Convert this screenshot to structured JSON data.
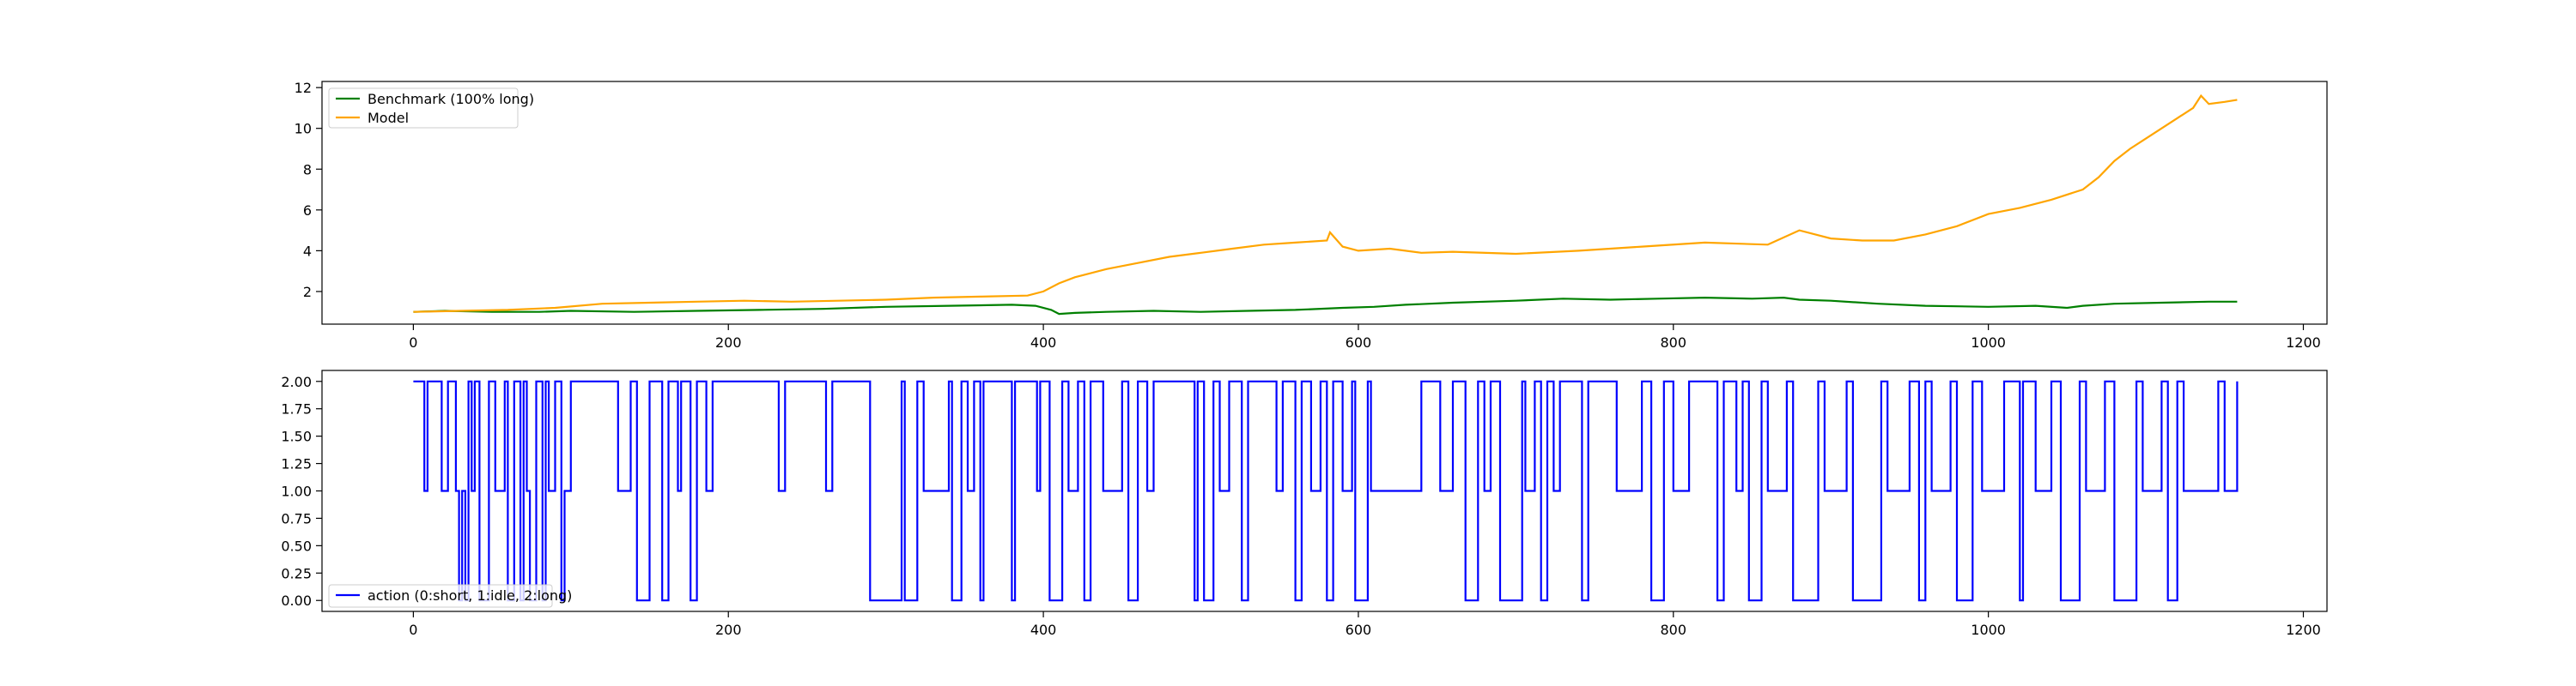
{
  "chart_data": [
    {
      "type": "line",
      "title": "",
      "xlabel": "",
      "ylabel": "",
      "xlim": [
        -58,
        1215
      ],
      "ylim": [
        0.4,
        12.3
      ],
      "x_ticks": [
        0,
        200,
        400,
        600,
        800,
        1000,
        1200
      ],
      "x_tick_labels": [
        "0",
        "200",
        "400",
        "600",
        "800",
        "1000",
        "1200"
      ],
      "y_ticks": [
        2,
        4,
        6,
        8,
        10,
        12
      ],
      "y_tick_labels": [
        "2",
        "4",
        "6",
        "8",
        "10",
        "12"
      ],
      "grid": false,
      "legend_position": "upper-left",
      "series": [
        {
          "name": "Benchmark (100% long)",
          "color": "#008000",
          "x": [
            0,
            20,
            50,
            80,
            100,
            140,
            180,
            220,
            260,
            300,
            340,
            380,
            395,
            405,
            410,
            420,
            440,
            470,
            500,
            530,
            560,
            590,
            610,
            630,
            660,
            700,
            730,
            760,
            790,
            820,
            850,
            870,
            880,
            900,
            930,
            960,
            1000,
            1030,
            1050,
            1060,
            1080,
            1110,
            1140,
            1158
          ],
          "y": [
            1.0,
            1.05,
            1.0,
            1.0,
            1.05,
            1.0,
            1.05,
            1.1,
            1.15,
            1.25,
            1.3,
            1.35,
            1.3,
            1.1,
            0.9,
            0.95,
            1.0,
            1.05,
            1.0,
            1.05,
            1.1,
            1.2,
            1.25,
            1.35,
            1.45,
            1.55,
            1.65,
            1.6,
            1.65,
            1.7,
            1.65,
            1.7,
            1.6,
            1.55,
            1.4,
            1.3,
            1.25,
            1.3,
            1.2,
            1.3,
            1.4,
            1.45,
            1.5,
            1.5
          ],
          "values": [
            1.0,
            1.05,
            1.0,
            1.0,
            1.05,
            1.0,
            1.05,
            1.1,
            1.15,
            1.25,
            1.3,
            1.35,
            1.3,
            1.1,
            0.9,
            0.95,
            1.0,
            1.05,
            1.0,
            1.05,
            1.1,
            1.2,
            1.25,
            1.35,
            1.45,
            1.55,
            1.65,
            1.6,
            1.65,
            1.7,
            1.65,
            1.7,
            1.6,
            1.55,
            1.4,
            1.3,
            1.25,
            1.3,
            1.2,
            1.3,
            1.4,
            1.45,
            1.5,
            1.5
          ]
        },
        {
          "name": "Model",
          "color": "#FFA500",
          "x": [
            0,
            30,
            60,
            90,
            120,
            150,
            180,
            210,
            240,
            270,
            300,
            330,
            360,
            390,
            400,
            410,
            420,
            440,
            460,
            480,
            500,
            520,
            540,
            560,
            580,
            582,
            590,
            600,
            620,
            640,
            660,
            700,
            740,
            780,
            820,
            860,
            880,
            900,
            920,
            940,
            960,
            980,
            1000,
            1020,
            1040,
            1060,
            1070,
            1080,
            1090,
            1100,
            1110,
            1120,
            1130,
            1135,
            1140,
            1150,
            1158
          ],
          "y": [
            1.0,
            1.05,
            1.1,
            1.2,
            1.4,
            1.45,
            1.5,
            1.55,
            1.5,
            1.55,
            1.6,
            1.7,
            1.75,
            1.8,
            2.0,
            2.4,
            2.7,
            3.1,
            3.4,
            3.7,
            3.9,
            4.1,
            4.3,
            4.4,
            4.5,
            4.9,
            4.2,
            4.0,
            4.1,
            3.9,
            3.95,
            3.85,
            4.0,
            4.2,
            4.4,
            4.3,
            5.0,
            4.6,
            4.5,
            4.5,
            4.8,
            5.2,
            5.8,
            6.1,
            6.5,
            7.0,
            7.6,
            8.4,
            9.0,
            9.5,
            10.0,
            10.5,
            11.0,
            11.6,
            11.2,
            11.3,
            11.4
          ],
          "values": [
            1.0,
            1.05,
            1.1,
            1.2,
            1.4,
            1.45,
            1.5,
            1.55,
            1.5,
            1.55,
            1.6,
            1.7,
            1.75,
            1.8,
            2.0,
            2.4,
            2.7,
            3.1,
            3.4,
            3.7,
            3.9,
            4.1,
            4.3,
            4.4,
            4.5,
            4.9,
            4.2,
            4.0,
            4.1,
            3.9,
            3.95,
            3.85,
            4.0,
            4.2,
            4.4,
            4.3,
            5.0,
            4.6,
            4.5,
            4.5,
            4.8,
            5.2,
            5.8,
            6.1,
            6.5,
            7.0,
            7.6,
            8.4,
            9.0,
            9.5,
            10.0,
            10.5,
            11.0,
            11.6,
            11.2,
            11.3,
            11.4
          ]
        }
      ]
    },
    {
      "type": "line",
      "title": "",
      "xlabel": "",
      "ylabel": "",
      "step": true,
      "xlim": [
        -58,
        1215
      ],
      "ylim": [
        -0.1,
        2.1
      ],
      "x_ticks": [
        0,
        200,
        400,
        600,
        800,
        1000,
        1200
      ],
      "x_tick_labels": [
        "0",
        "200",
        "400",
        "600",
        "800",
        "1000",
        "1200"
      ],
      "y_ticks": [
        0.0,
        0.25,
        0.5,
        0.75,
        1.0,
        1.25,
        1.5,
        1.75,
        2.0
      ],
      "y_tick_labels": [
        "0.00",
        "0.25",
        "0.50",
        "0.75",
        "1.00",
        "1.25",
        "1.50",
        "1.75",
        "2.00"
      ],
      "grid": false,
      "legend_position": "lower-left",
      "series": [
        {
          "name": "action (0:short, 1:idle, 2:long)",
          "color": "#0000FF",
          "x": [
            0,
            7,
            9,
            18,
            22,
            27,
            29,
            31,
            33,
            35,
            37,
            39,
            42,
            48,
            52,
            58,
            60,
            64,
            68,
            70,
            72,
            74,
            78,
            82,
            84,
            86,
            90,
            94,
            96,
            100,
            102,
            130,
            138,
            142,
            150,
            158,
            162,
            168,
            170,
            176,
            180,
            186,
            190,
            232,
            236,
            262,
            266,
            290,
            310,
            312,
            320,
            324,
            340,
            342,
            348,
            352,
            356,
            360,
            362,
            380,
            382,
            396,
            398,
            404,
            412,
            416,
            422,
            426,
            430,
            438,
            450,
            454,
            460,
            466,
            470,
            496,
            498,
            502,
            508,
            512,
            518,
            526,
            530,
            548,
            552,
            560,
            564,
            570,
            576,
            580,
            584,
            590,
            596,
            598,
            606,
            608,
            640,
            652,
            660,
            668,
            676,
            680,
            684,
            690,
            704,
            706,
            712,
            716,
            720,
            724,
            728,
            742,
            746,
            764,
            780,
            786,
            794,
            800,
            810,
            828,
            832,
            840,
            844,
            848,
            856,
            860,
            872,
            876,
            892,
            896,
            910,
            914,
            932,
            936,
            950,
            956,
            960,
            964,
            976,
            980,
            990,
            996,
            1010,
            1020,
            1022,
            1030,
            1040,
            1046,
            1058,
            1062,
            1074,
            1080,
            1094,
            1098,
            1110,
            1114,
            1120,
            1124,
            1146,
            1150,
            1158
          ],
          "values": [
            2,
            1,
            2,
            1,
            2,
            1,
            0,
            1,
            0,
            2,
            1,
            2,
            0,
            2,
            1,
            2,
            0,
            2,
            0,
            2,
            1,
            0,
            2,
            0,
            2,
            1,
            2,
            0,
            1,
            2,
            2,
            1,
            2,
            0,
            2,
            0,
            2,
            1,
            2,
            0,
            2,
            1,
            2,
            1,
            2,
            1,
            2,
            0,
            2,
            0,
            2,
            1,
            2,
            0,
            2,
            1,
            2,
            0,
            2,
            0,
            2,
            1,
            2,
            0,
            2,
            1,
            2,
            0,
            2,
            1,
            2,
            0,
            2,
            1,
            2,
            0,
            2,
            0,
            2,
            1,
            2,
            0,
            2,
            1,
            2,
            0,
            2,
            1,
            2,
            0,
            2,
            1,
            2,
            0,
            2,
            1,
            2,
            1,
            2,
            0,
            2,
            1,
            2,
            0,
            2,
            1,
            2,
            0,
            2,
            1,
            2,
            0,
            2,
            1,
            2,
            0,
            2,
            1,
            2,
            0,
            2,
            1,
            2,
            0,
            2,
            1,
            2,
            0,
            2,
            1,
            2,
            0,
            2,
            1,
            2,
            0,
            2,
            1,
            2,
            0,
            2,
            1,
            2,
            0,
            2,
            1,
            2,
            0,
            2,
            1,
            2,
            0,
            2,
            1,
            2,
            0,
            2,
            1,
            2,
            1,
            2
          ]
        }
      ]
    }
  ]
}
